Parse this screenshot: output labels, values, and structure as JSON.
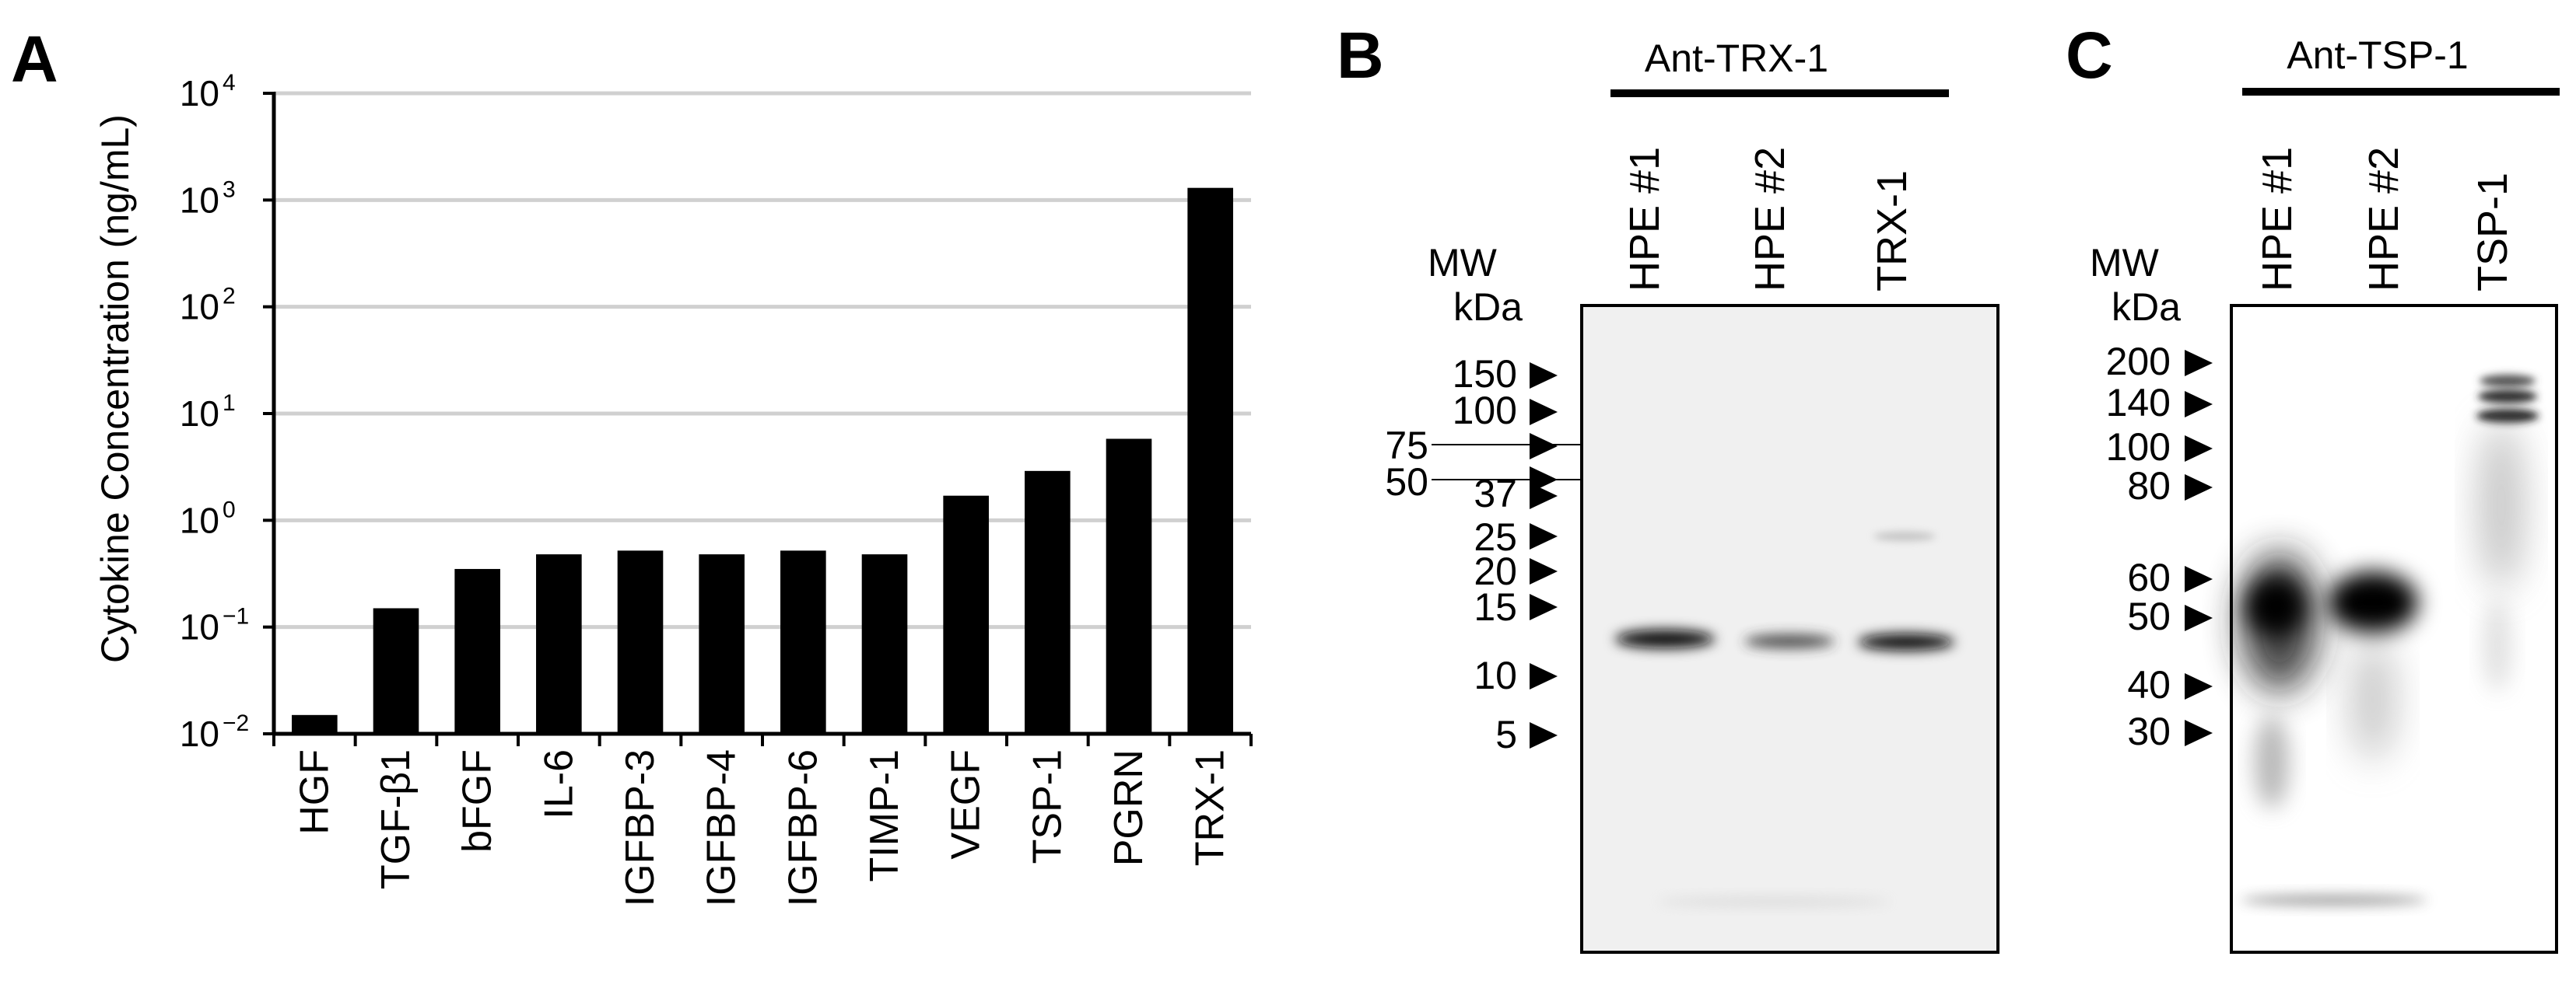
{
  "panels": {
    "a": {
      "letter": "A",
      "chart_data": {
        "type": "bar",
        "ylabel": "Cytokine Concentration (ng/mL)",
        "xlabel": "",
        "yscale": "log",
        "ylim": [
          0.01,
          10000
        ],
        "yticks": [
          {
            "base": "10",
            "exp": "4"
          },
          {
            "base": "10",
            "exp": "3"
          },
          {
            "base": "10",
            "exp": "2"
          },
          {
            "base": "10",
            "exp": "1"
          },
          {
            "base": "10",
            "exp": "0"
          },
          {
            "base": "10",
            "exp": "−1"
          },
          {
            "base": "10",
            "exp": "−2"
          }
        ],
        "grid": true,
        "categories": [
          "HGF",
          "TGF-β1",
          "bFGF",
          "IL-6",
          "IGFBP-3",
          "IGFBP-4",
          "IGFBP-6",
          "TIMP-1",
          "VEGF",
          "TSP-1",
          "PGRN",
          "TRX-1"
        ],
        "values": [
          0.015,
          0.15,
          0.35,
          0.48,
          0.52,
          0.48,
          0.52,
          0.48,
          1.7,
          2.9,
          5.8,
          1300
        ],
        "bar_color": "#000000",
        "grid_color": "#d0d0d0"
      }
    },
    "b": {
      "letter": "B",
      "antibody": "Ant-TRX-1",
      "mw_title": [
        "MW",
        "kDa"
      ],
      "lanes": [
        "HPE #1",
        "HPE #2",
        "TRX-1"
      ],
      "markers": [
        "150",
        "100",
        "75",
        "50",
        "37",
        "25",
        "20",
        "15",
        "10",
        "5"
      ]
    },
    "c": {
      "letter": "C",
      "antibody": "Ant-TSP-1",
      "mw_title": [
        "MW",
        "kDa"
      ],
      "lanes": [
        "HPE #1",
        "HPE #2",
        "TSP-1"
      ],
      "markers": [
        "200",
        "140",
        "100",
        "80",
        "60",
        "50",
        "40",
        "30"
      ]
    }
  }
}
